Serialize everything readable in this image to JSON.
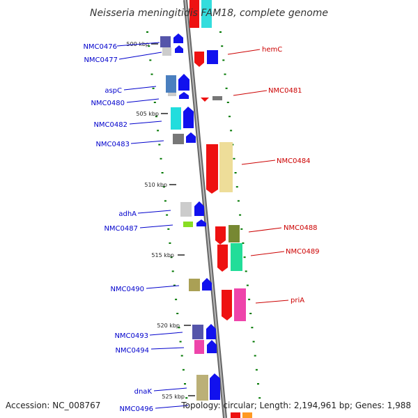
{
  "title": "Neisseria meningitidis FAM18, complete genome",
  "accession": "Accession: NC_008767",
  "summary": "Topology: circular; Length: 2,194,961 bp; Genes: 1,988",
  "colors": {
    "left_label": "#0000cc",
    "right_label": "#cc0000",
    "backbone": "#888888",
    "tick": "#007700"
  },
  "tick_labels": [
    "500 kbp",
    "505 kbp",
    "510 kbp",
    "515 kbp",
    "520 kbp",
    "525 kbp"
  ],
  "left_genes": [
    "NMC0476",
    "NMC0477",
    "aspC",
    "NMC0480",
    "NMC0482",
    "NMC0483",
    "adhA",
    "NMC0487",
    "NMC0490",
    "NMC0493",
    "NMC0494",
    "dnaK",
    "NMC0496"
  ],
  "right_genes": [
    "hemC",
    "NMC0481",
    "NMC0484",
    "NMC0488",
    "NMC0489",
    "priA"
  ]
}
